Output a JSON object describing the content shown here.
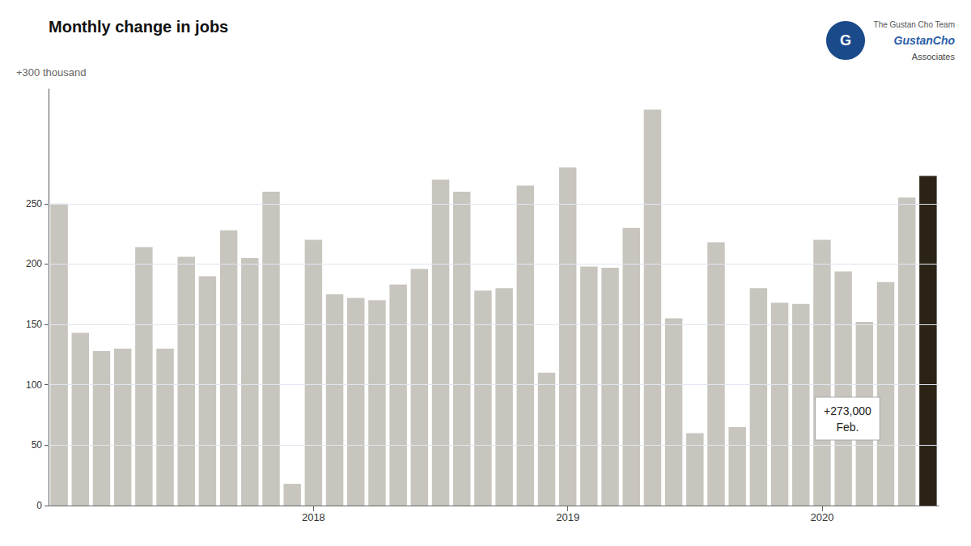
{
  "chart_data": {
    "type": "bar",
    "title": "Monthly change in jobs",
    "ylabel": "+300 thousand",
    "categories": [
      null,
      null,
      null,
      null,
      null,
      null,
      null,
      null,
      null,
      null,
      null,
      null,
      "2018",
      null,
      null,
      null,
      null,
      null,
      null,
      null,
      null,
      null,
      null,
      null,
      "2019",
      null,
      null,
      null,
      null,
      null,
      null,
      null,
      null,
      null,
      null,
      null,
      "2020",
      null,
      null,
      null,
      null,
      null
    ],
    "values": [
      250,
      143,
      128,
      130,
      214,
      130,
      206,
      190,
      228,
      205,
      260,
      18,
      220,
      175,
      172,
      170,
      183,
      196,
      270,
      260,
      178,
      180,
      265,
      110,
      280,
      198,
      197,
      230,
      328,
      155,
      60,
      218,
      65,
      180,
      168,
      167,
      220,
      194,
      152,
      185,
      255,
      273
    ],
    "colors": [
      "#c8c5be",
      "#c8c5be",
      "#c8c5be",
      "#c8c5be",
      "#c8c5be",
      "#c8c5be",
      "#c8c5be",
      "#c8c5be",
      "#c8c5be",
      "#c8c5be",
      "#c8c5be",
      "#c8c5be",
      "#c8c5be",
      "#c8c5be",
      "#c8c5be",
      "#c8c5be",
      "#c8c5be",
      "#c8c5be",
      "#c8c5be",
      "#c8c5be",
      "#c8c5be",
      "#c8c5be",
      "#c8c5be",
      "#c8c5be",
      "#c8c5be",
      "#c8c5be",
      "#c8c5be",
      "#c8c5be",
      "#c8c5be",
      "#c8c5be",
      "#c8c5be",
      "#c8c5be",
      "#c8c5be",
      "#c8c5be",
      "#c8c5be",
      "#c8c5be",
      "#c8c5be",
      "#c8c5be",
      "#c8c5be",
      "#c8c5be",
      "#c8c5be",
      "#2b2416"
    ],
    "ylim": [
      0,
      345
    ],
    "yticks": [
      0,
      50,
      100,
      150,
      200,
      250
    ],
    "grid": true,
    "annotations": [
      "+273,000\nFeb.",
      "The Gustan Cho Team",
      "GustanCho",
      "Associates",
      "G"
    ]
  }
}
